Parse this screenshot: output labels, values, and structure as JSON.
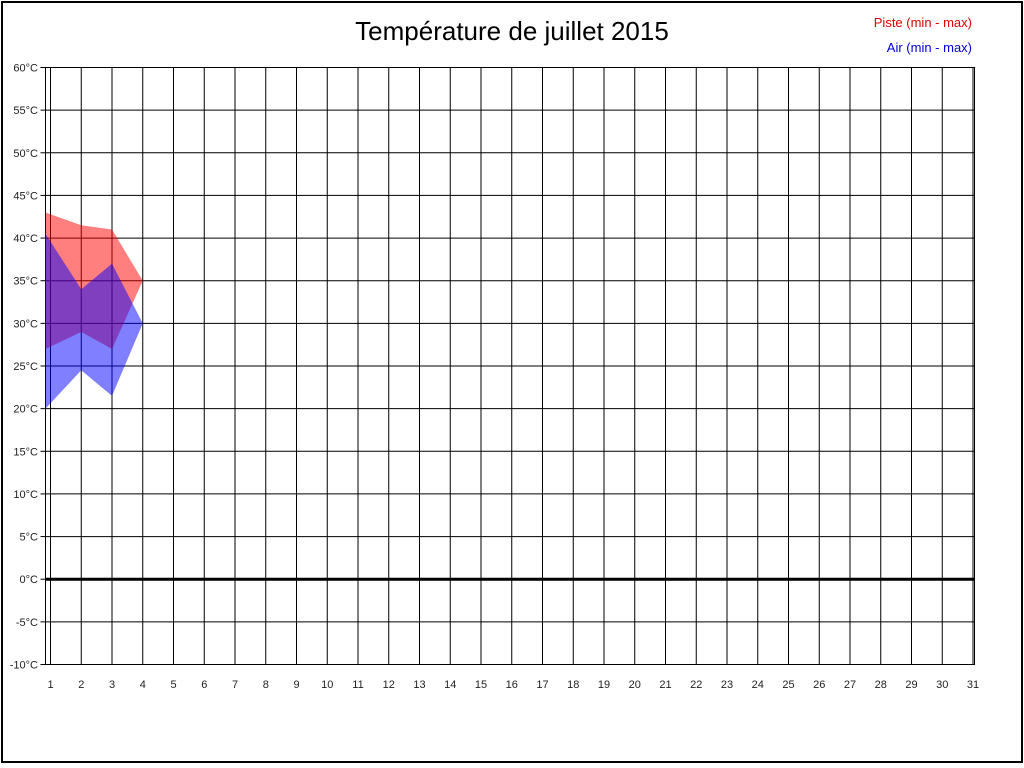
{
  "page": {
    "background": "#ffffff",
    "border_color": "#000000"
  },
  "chart_data": {
    "type": "area",
    "subtype": "min-max range bands",
    "title": "Température de juillet 2015",
    "xlabel": "",
    "ylabel": "",
    "xlim": [
      1,
      31
    ],
    "ylim": [
      -10,
      60
    ],
    "y_step": 5,
    "grid": true,
    "zero_line_value": 0,
    "legend_position": "top-right",
    "legend": [
      {
        "label": "Piste (min - max)",
        "color": "#e00000"
      },
      {
        "label": "Air (min - max)",
        "color": "#0000dd"
      }
    ],
    "x_ticks": [
      "1",
      "2",
      "3",
      "4",
      "5",
      "6",
      "7",
      "8",
      "9",
      "10",
      "11",
      "12",
      "13",
      "14",
      "15",
      "16",
      "17",
      "18",
      "19",
      "20",
      "21",
      "22",
      "23",
      "24",
      "25",
      "26",
      "27",
      "28",
      "29",
      "30",
      "31"
    ],
    "y_ticks": [
      {
        "label": "60°C",
        "value": 60
      },
      {
        "label": "55°C",
        "value": 55
      },
      {
        "label": "50°C",
        "value": 50
      },
      {
        "label": "45°C",
        "value": 45
      },
      {
        "label": "40°C",
        "value": 40
      },
      {
        "label": "35°C",
        "value": 35
      },
      {
        "label": "30°C",
        "value": 30
      },
      {
        "label": "25°C",
        "value": 25
      },
      {
        "label": "20°C",
        "value": 20
      },
      {
        "label": "15°C",
        "value": 15
      },
      {
        "label": "10°C",
        "value": 10
      },
      {
        "label": "5°C",
        "value": 5
      },
      {
        "label": "0°C",
        "value": 0
      },
      {
        "label": "-5°C",
        "value": -5
      },
      {
        "label": "-10°C",
        "value": -10
      }
    ],
    "series": [
      {
        "name": "piste",
        "legend_label": "Piste (min - max)",
        "fill": "#ff0000",
        "fill_opacity": 0.5,
        "days": [
          1,
          2,
          3,
          4
        ],
        "max": [
          43,
          41.5,
          41,
          35
        ],
        "min": [
          27,
          29,
          27,
          35
        ]
      },
      {
        "name": "air",
        "legend_label": "Air (min - max)",
        "fill": "#0000ff",
        "fill_opacity": 0.5,
        "days": [
          1,
          2,
          3,
          4
        ],
        "max": [
          40.5,
          34,
          37,
          30
        ],
        "min": [
          20,
          24.5,
          21.5,
          30
        ]
      }
    ]
  }
}
